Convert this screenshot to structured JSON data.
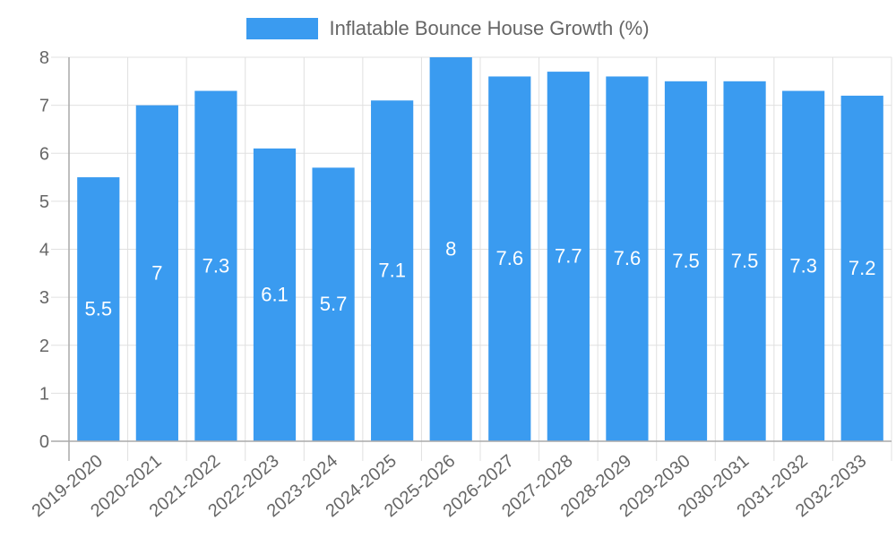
{
  "legend": {
    "label": "Inflatable Bounce House Growth (%)",
    "color": "#3a9bf0"
  },
  "chart_data": {
    "type": "bar",
    "title": "",
    "xlabel": "",
    "ylabel": "",
    "ylim": [
      0,
      8
    ],
    "yticks": [
      0,
      1,
      2,
      3,
      4,
      5,
      6,
      7,
      8
    ],
    "grid": true,
    "legend_position": "top",
    "categories": [
      "2019-2020",
      "2020-2021",
      "2021-2022",
      "2022-2023",
      "2023-2024",
      "2024-2025",
      "2025-2026",
      "2026-2027",
      "2027-2028",
      "2028-2029",
      "2029-2030",
      "2030-2031",
      "2031-2032",
      "2032-2033"
    ],
    "series": [
      {
        "name": "Inflatable Bounce House Growth (%)",
        "color": "#3a9bf0",
        "values": [
          5.5,
          7,
          7.3,
          6.1,
          5.7,
          7.1,
          8,
          7.6,
          7.7,
          7.6,
          7.5,
          7.5,
          7.3,
          7.2
        ]
      }
    ],
    "data_labels": [
      "5.5",
      "7",
      "7.3",
      "6.1",
      "5.7",
      "7.1",
      "8",
      "7.6",
      "7.7",
      "7.6",
      "7.5",
      "7.5",
      "7.3",
      "7.2"
    ]
  }
}
